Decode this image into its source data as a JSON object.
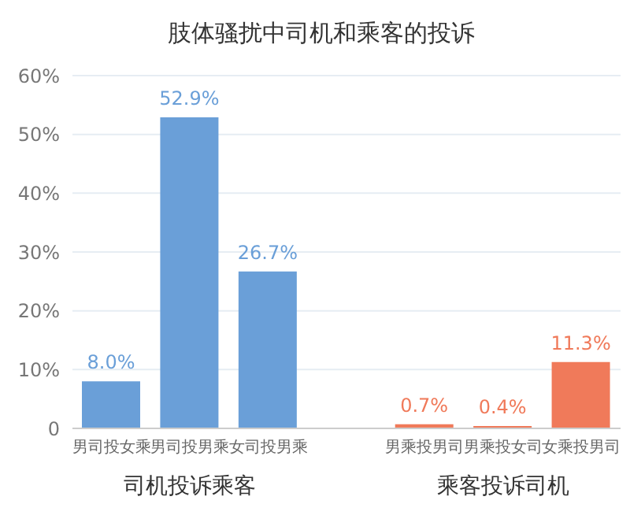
{
  "chart_data": {
    "type": "bar",
    "title": "肢体骚扰中司机和乘客的投诉",
    "categories": [
      "男司投女乘",
      "男司投男乘",
      "女司投男乘",
      null,
      "男乘投男司",
      "男乘投女司",
      "女乘投男司"
    ],
    "values": [
      8.0,
      52.9,
      26.7,
      null,
      0.7,
      0.4,
      11.3
    ],
    "colors": [
      "#6a9fd8",
      "#6a9fd8",
      "#6a9fd8",
      "#6a9fd8",
      "#f07a5a",
      "#f07a5a",
      "#f07a5a"
    ],
    "value_labels": [
      "8.0%",
      "52.9%",
      "26.7%",
      null,
      "0.7%",
      "0.4%",
      "11.3%"
    ],
    "ylim": [
      0,
      60
    ],
    "yticks": [
      {
        "value": 0,
        "label": "0"
      },
      {
        "value": 10,
        "label": "10%"
      },
      {
        "value": 20,
        "label": "20%"
      },
      {
        "value": 30,
        "label": "30%"
      },
      {
        "value": 40,
        "label": "40%"
      },
      {
        "value": 50,
        "label": "50%"
      },
      {
        "value": 60,
        "label": "60%"
      }
    ],
    "grid": "y",
    "annotations": [
      "司机投诉乘客",
      "乘客投诉司机"
    ]
  }
}
